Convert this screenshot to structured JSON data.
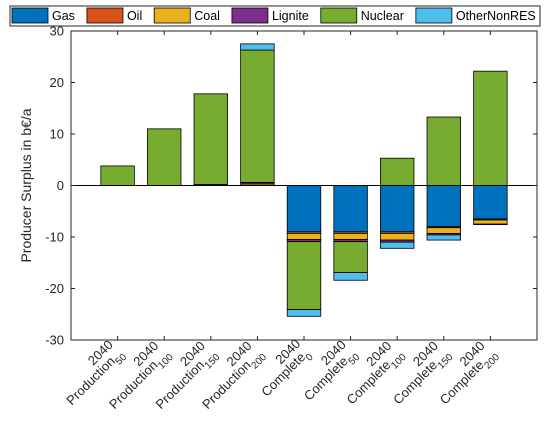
{
  "chart_data": {
    "type": "bar",
    "stacked": true,
    "ylabel": "Producer Surplus in b€/a",
    "ylim": [
      -30,
      30
    ],
    "yticks": [
      -30,
      -20,
      -10,
      0,
      10,
      20,
      30
    ],
    "grid": false,
    "legend_placement": "top",
    "categories": [
      {
        "base": "Production",
        "sup": "2040",
        "sub": "50"
      },
      {
        "base": "Production",
        "sup": "2040",
        "sub": "100"
      },
      {
        "base": "Production",
        "sup": "2040",
        "sub": "150"
      },
      {
        "base": "Production",
        "sup": "2040",
        "sub": "200"
      },
      {
        "base": "Complete",
        "sup": "2040",
        "sub": "0"
      },
      {
        "base": "Complete",
        "sup": "2040",
        "sub": "50"
      },
      {
        "base": "Complete",
        "sup": "2040",
        "sub": "100"
      },
      {
        "base": "Complete",
        "sup": "2040",
        "sub": "150"
      },
      {
        "base": "Complete",
        "sup": "2040",
        "sub": "200"
      }
    ],
    "series": [
      {
        "name": "Gas",
        "color": "#0072BD",
        "values": [
          0,
          0,
          0,
          0,
          -9.0,
          -9.0,
          -9.0,
          -8.0,
          -6.5
        ]
      },
      {
        "name": "Oil",
        "color": "#D95319",
        "values": [
          0,
          0,
          0,
          0,
          -0.3,
          -0.3,
          -0.3,
          -0.2,
          -0.2
        ]
      },
      {
        "name": "Coal",
        "color": "#EDB120",
        "values": [
          0,
          0,
          0.1,
          0.3,
          -1.2,
          -1.2,
          -1.3,
          -1.1,
          -0.8
        ]
      },
      {
        "name": "Lignite",
        "color": "#7E2F8E",
        "values": [
          0,
          0,
          0.1,
          0.3,
          -0.4,
          -0.4,
          -0.4,
          -0.3,
          -0.1
        ]
      },
      {
        "name": "Nuclear",
        "color": "#77AC30",
        "values": [
          3.8,
          11.0,
          17.6,
          25.7,
          -13.2,
          -6.0,
          5.3,
          13.3,
          22.2
        ]
      },
      {
        "name": "OtherNonRES",
        "color": "#4DBEEE",
        "values": [
          0,
          0,
          0,
          1.2,
          -1.3,
          -1.5,
          -1.2,
          -1.0,
          0
        ]
      }
    ]
  }
}
